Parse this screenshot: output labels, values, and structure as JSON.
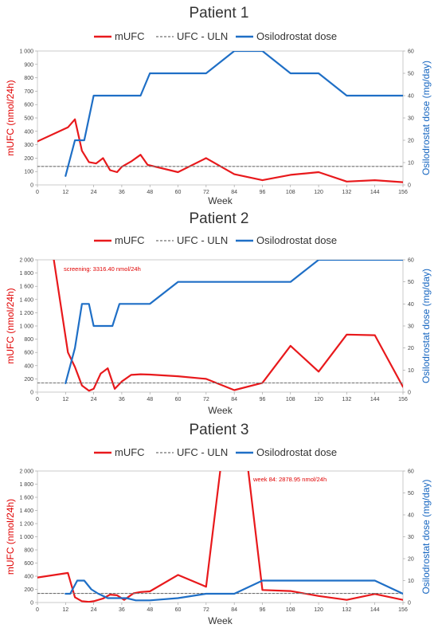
{
  "colors": {
    "mufc": "#e8191c",
    "uln": "#707070",
    "dose": "#1f6fc6",
    "axis_left": "#e00000",
    "axis_right": "#1565c0"
  },
  "legend_labels": {
    "mufc": "mUFC",
    "uln": "UFC - ULN",
    "dose": "Osilodrostat dose"
  },
  "chart_data": [
    {
      "type": "line",
      "title": "Patient 1",
      "xlabel": "Week",
      "ylabel": "mUFC (nmol/24h)",
      "y2label": "Osilodrostat dose (mg/day)",
      "xlim": [
        0,
        156
      ],
      "xticks": [
        0,
        12,
        24,
        36,
        48,
        60,
        72,
        84,
        96,
        108,
        120,
        132,
        144,
        156
      ],
      "ylim": [
        0,
        1000
      ],
      "yticks": [
        0,
        100,
        200,
        300,
        400,
        500,
        600,
        700,
        800,
        900,
        1000
      ],
      "ytick_labels": [
        "0",
        "100",
        "200",
        "300",
        "400",
        "500",
        "600",
        "700",
        "800",
        "900",
        "1 000"
      ],
      "y2lim": [
        0,
        60
      ],
      "y2ticks": [
        0,
        10,
        20,
        30,
        40,
        50,
        60
      ],
      "uln": 138,
      "annotation": "",
      "series": [
        {
          "key": "mufc",
          "axis": "left",
          "x": [
            0,
            13,
            16,
            19,
            22,
            25,
            28,
            31,
            34,
            36,
            40,
            44,
            47,
            60,
            72,
            84,
            96,
            108,
            120,
            132,
            144,
            156
          ],
          "y": [
            325,
            430,
            490,
            255,
            170,
            160,
            200,
            110,
            95,
            135,
            175,
            225,
            150,
            95,
            200,
            80,
            35,
            75,
            95,
            25,
            35,
            20
          ]
        },
        {
          "key": "uln",
          "axis": "left",
          "x": [
            0,
            156
          ],
          "y": [
            138,
            138
          ]
        },
        {
          "key": "dose",
          "axis": "right",
          "x": [
            12,
            16,
            20,
            24,
            44,
            48,
            72,
            84,
            96,
            108,
            120,
            132,
            156
          ],
          "y": [
            4,
            20,
            20,
            40,
            40,
            50,
            50,
            60,
            60,
            50,
            50,
            40,
            40
          ]
        }
      ]
    },
    {
      "type": "line",
      "title": "Patient 2",
      "xlabel": "Week",
      "ylabel": "mUFC (nmol/24h)",
      "y2label": "Osilodrostat dose (mg/day)",
      "xlim": [
        0,
        156
      ],
      "xticks": [
        0,
        12,
        24,
        36,
        48,
        60,
        72,
        84,
        96,
        108,
        120,
        132,
        144,
        156
      ],
      "ylim": [
        0,
        2000
      ],
      "yticks": [
        0,
        200,
        400,
        600,
        800,
        1000,
        1200,
        1400,
        1600,
        1800,
        2000
      ],
      "ytick_labels": [
        "0",
        "200",
        "400",
        "600",
        "800",
        "1 000",
        "1 200",
        "1 400",
        "1 600",
        "1 800",
        "2 000"
      ],
      "y2lim": [
        0,
        60
      ],
      "y2ticks": [
        0,
        10,
        20,
        30,
        40,
        50,
        60
      ],
      "uln": 138,
      "annotation": "screening: 3316.40 nmol/24h",
      "series": [
        {
          "key": "mufc",
          "axis": "left",
          "x": [
            7,
            13,
            16,
            19,
            22,
            24,
            27,
            30,
            33,
            36,
            40,
            44,
            48,
            60,
            72,
            84,
            96,
            108,
            120,
            132,
            144,
            156
          ],
          "y": [
            2000,
            600,
            380,
            100,
            20,
            50,
            280,
            360,
            50,
            160,
            260,
            270,
            265,
            240,
            200,
            30,
            140,
            700,
            310,
            870,
            860,
            80
          ]
        },
        {
          "key": "uln",
          "axis": "left",
          "x": [
            0,
            156
          ],
          "y": [
            138,
            138
          ]
        },
        {
          "key": "dose",
          "axis": "right",
          "x": [
            12,
            16,
            19,
            22,
            24,
            28,
            32,
            35,
            45,
            48,
            60,
            72,
            84,
            96,
            108,
            120,
            132,
            144,
            156
          ],
          "y": [
            4,
            20,
            40,
            40,
            30,
            30,
            30,
            40,
            40,
            40,
            50,
            50,
            50,
            50,
            50,
            60,
            60,
            60,
            60
          ]
        }
      ]
    },
    {
      "type": "line",
      "title": "Patient 3",
      "xlabel": "Week",
      "ylabel": "mUFC (nmol/24h)",
      "y2label": "Osilodrostat dose (mg/day)",
      "xlim": [
        0,
        156
      ],
      "xticks": [
        0,
        12,
        24,
        36,
        48,
        60,
        72,
        84,
        96,
        108,
        120,
        132,
        144,
        156
      ],
      "ylim": [
        0,
        2000
      ],
      "yticks": [
        0,
        200,
        400,
        600,
        800,
        1000,
        1200,
        1400,
        1600,
        1800,
        2000
      ],
      "ytick_labels": [
        "0",
        "200",
        "400",
        "600",
        "800",
        "1 000",
        "1 200",
        "1 400",
        "1 600",
        "1 800",
        "2 000"
      ],
      "y2lim": [
        0,
        60
      ],
      "y2ticks": [
        0,
        10,
        20,
        30,
        40,
        50,
        60
      ],
      "uln": 138,
      "annotation": "week 84: 2878.95 nmol/24h",
      "series": [
        {
          "key": "mufc",
          "axis": "left",
          "x": [
            0,
            13,
            16,
            19,
            22,
            24,
            28,
            31,
            34,
            37,
            41,
            44,
            48,
            60,
            72,
            78,
            84,
            90,
            96,
            108,
            120,
            132,
            144,
            156
          ],
          "y": [
            380,
            450,
            80,
            20,
            10,
            20,
            60,
            120,
            110,
            40,
            140,
            160,
            170,
            420,
            240,
            2000,
            2879,
            2000,
            190,
            175,
            100,
            40,
            130,
            40
          ]
        },
        {
          "key": "uln",
          "axis": "left",
          "x": [
            0,
            156
          ],
          "y": [
            138,
            138
          ]
        },
        {
          "key": "dose",
          "axis": "right",
          "x": [
            12,
            14,
            17,
            20,
            23,
            26,
            30,
            34,
            38,
            42,
            48,
            60,
            72,
            84,
            96,
            108,
            120,
            132,
            144,
            156
          ],
          "y": [
            4,
            4,
            10,
            10,
            6,
            4,
            2,
            2,
            2,
            1,
            1,
            2,
            4,
            4,
            10,
            10,
            10,
            10,
            10,
            4
          ]
        }
      ]
    }
  ]
}
